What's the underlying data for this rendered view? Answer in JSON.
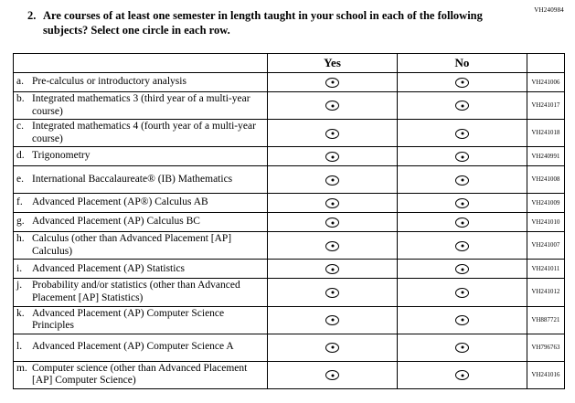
{
  "page": {
    "form_code": "VH240984"
  },
  "question": {
    "number": "2.",
    "text_before": "Are courses of at least one semester in length taught in your school in each of the following subjects? Select ",
    "text_emph": "one",
    "text_after": " circle in each row."
  },
  "table": {
    "columns": {
      "yes": "Yes",
      "no": "No"
    },
    "option_icon": "answer-circle",
    "rows": [
      {
        "letter": "a.",
        "label": "Pre-calculus or introductory analysis",
        "code": "VH241006"
      },
      {
        "letter": "b.",
        "label": "Integrated mathematics 3 (third year of a multi-year course)",
        "code": "VH241017"
      },
      {
        "letter": "c.",
        "label": "Integrated mathematics 4 (fourth year of a multi-year course)",
        "code": "VH241018"
      },
      {
        "letter": "d.",
        "label": "Trigonometry",
        "code": "VH240991"
      },
      {
        "letter": "e.",
        "label": "International Baccalaureate® (IB) Mathematics",
        "code": "VH241008"
      },
      {
        "letter": "f.",
        "label": "Advanced Placement (AP®) Calculus AB",
        "code": "VH241009"
      },
      {
        "letter": "g.",
        "label": "Advanced Placement (AP) Calculus BC",
        "code": "VH241010"
      },
      {
        "letter": "h.",
        "label": "Calculus (other than Advanced Placement [AP] Calculus)",
        "code": "VH241007"
      },
      {
        "letter": "i.",
        "label": "Advanced Placement (AP) Statistics",
        "code": "VH241011"
      },
      {
        "letter": "j.",
        "label": "Probability and/or statistics (other than Advanced Placement [AP] Statistics)",
        "code": "VH241012"
      },
      {
        "letter": "k.",
        "label": "Advanced Placement (AP) Computer Science Principles",
        "code": "VH887721"
      },
      {
        "letter": "l.",
        "label": "Advanced Placement (AP) Computer Science A",
        "code": "VH796763"
      },
      {
        "letter": "m.",
        "label": "Computer science (other than Advanced Placement [AP] Computer Science)",
        "code": "VH241016"
      }
    ]
  }
}
